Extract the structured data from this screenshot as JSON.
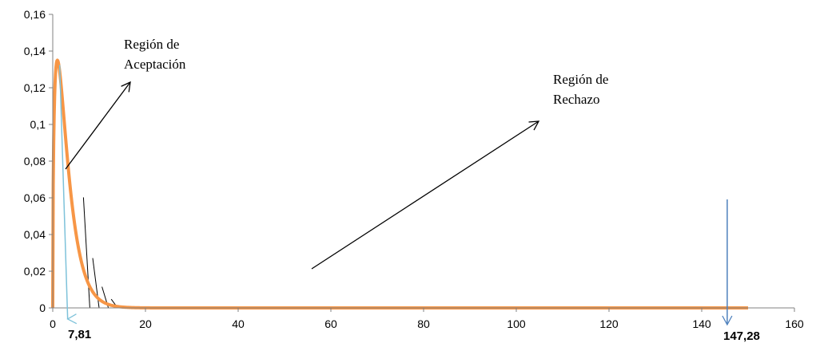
{
  "chart_data": {
    "type": "line",
    "title": "",
    "xlabel": "",
    "ylabel": "",
    "xlim": [
      0,
      160
    ],
    "ylim": [
      0,
      0.16
    ],
    "grid": false,
    "legend": "none",
    "x_ticks": [
      0,
      20,
      40,
      60,
      80,
      100,
      120,
      140,
      160
    ],
    "x_tick_labels": [
      "0",
      "20",
      "40",
      "60",
      "80",
      "100",
      "120",
      "140",
      "160"
    ],
    "y_ticks": [
      0,
      0.02,
      0.04,
      0.06,
      0.08,
      0.1,
      0.12,
      0.14,
      0.16
    ],
    "y_tick_labels": [
      "0",
      "0,02",
      "0,04",
      "0,06",
      "0,08",
      "0,1",
      "0,12",
      "0,14",
      "0,16"
    ],
    "series": [
      {
        "color": "#F79646",
        "x": [
          0,
          1,
          2,
          3,
          4,
          5,
          6,
          7,
          8,
          9,
          10,
          11,
          12,
          13,
          14,
          15,
          16,
          18,
          20,
          22,
          24,
          26,
          30,
          40,
          60,
          80,
          100,
          120,
          140,
          150
        ],
        "y": [
          0,
          0.1,
          0.132,
          0.135,
          0.118,
          0.091,
          0.065,
          0.043,
          0.027,
          0.016,
          0.009,
          0.005,
          0.0025,
          0.0013,
          0.0006,
          0.0003,
          0.00015,
          3e-05,
          1e-05,
          0,
          0,
          0,
          0,
          0,
          0,
          0,
          0,
          0,
          0,
          0
        ]
      }
    ],
    "hatch_lines_x": [
      8,
      10,
      12,
      14
    ],
    "critical_values": [
      {
        "label": "7,81",
        "x": 2.7,
        "color": "#7EC2DA"
      },
      {
        "label": "147,28",
        "x": 145.5,
        "color": "#4F81BD"
      }
    ],
    "annotations": [
      {
        "text_lines": [
          "Región de",
          "Aceptación"
        ]
      },
      {
        "text_lines": [
          "Región de",
          "Rechazo"
        ]
      }
    ],
    "colors": {
      "curve": "#F79646",
      "axis": "#808080",
      "critical_line_left": "#7EC2DA",
      "critical_line_right": "#4F81BD",
      "arrows": "#000000"
    }
  }
}
